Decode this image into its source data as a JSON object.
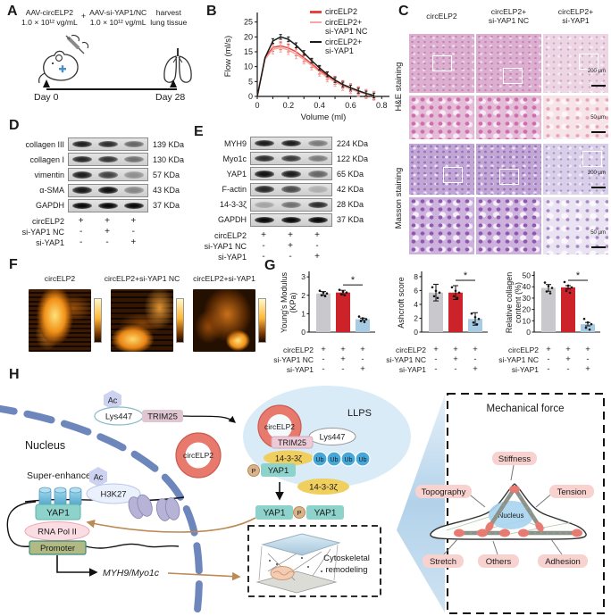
{
  "panelA": {
    "label": "A",
    "col1_line1": "AAV-circELP2",
    "col1_line2": "1.0 × 10¹² vg/mL",
    "plus": "+",
    "col2_line1": "AAV-si-YAP1/NC",
    "col2_line2": "1.0 × 10¹² vg/mL",
    "col3_line1": "harvest",
    "col3_line2": "lung tissue",
    "day0": "Day 0",
    "day28": "Day 28"
  },
  "panelB": {
    "label": "B",
    "chart_data": {
      "type": "line",
      "x": [
        0,
        0.05,
        0.1,
        0.15,
        0.2,
        0.25,
        0.3,
        0.35,
        0.4,
        0.45,
        0.5,
        0.55,
        0.6,
        0.65,
        0.7,
        0.75
      ],
      "series": [
        {
          "name": "circELP2",
          "color": "#e8423d",
          "values": [
            0,
            13,
            16.5,
            17,
            16.3,
            15,
            13,
            11,
            8.8,
            7,
            5.4,
            4,
            2.9,
            1.9,
            1,
            0.3
          ],
          "err": 1.3
        },
        {
          "name": "circELP2+ si-YAP1 NC",
          "color": "#f4a79e",
          "values": [
            0,
            12.5,
            15.8,
            16.4,
            15.6,
            14.2,
            12.4,
            10.4,
            8.3,
            6.4,
            4.9,
            3.5,
            2.5,
            1.5,
            0.8,
            0.2
          ],
          "err": 1.5
        },
        {
          "name": "circELP2+ si-YAP1",
          "color": "#1a1a1a",
          "values": [
            0,
            13,
            18.6,
            20,
            19.2,
            17.2,
            14.6,
            12,
            9.6,
            7.4,
            5.5,
            4,
            2.9,
            1.9,
            1,
            0.3
          ],
          "err": 0.8
        }
      ],
      "xlabel": "Volume (ml)",
      "ylabel": "Flow (ml/s)",
      "xticks": [
        0,
        0.2,
        0.4,
        0.6,
        0.8
      ],
      "minor_xticks": [
        0.1,
        0.3,
        0.5,
        0.7
      ],
      "yticks": [
        0,
        5,
        10,
        15,
        20,
        25
      ],
      "xlim": [
        0,
        0.85
      ],
      "ylim": [
        0,
        27
      ]
    },
    "legend": [
      {
        "color": "#e8423d",
        "lines": [
          "circELP2"
        ]
      },
      {
        "color": "#f4a79e",
        "lines": [
          "circELP2+",
          "si-YAP1 NC"
        ]
      },
      {
        "color": "#1a1a1a",
        "lines": [
          "circELP2+",
          "si-YAP1"
        ]
      }
    ]
  },
  "panelC": {
    "label": "C",
    "col_headers": [
      [
        "circELP2",
        ""
      ],
      [
        "circELP2+",
        "si-YAP1 NC"
      ],
      [
        "circELP2+",
        "si-YAP1"
      ]
    ],
    "row_groups": [
      "H&E staining",
      "Masson staining"
    ],
    "scale_bars": {
      "r1": "200 μm",
      "r2": "50 μm",
      "r3": "200 μm",
      "r4": "50 μm"
    }
  },
  "panelD": {
    "label": "D",
    "rows": [
      {
        "name": "collagen III",
        "kda": "139 KDa",
        "lanes": [
          0.88,
          0.82,
          0.55
        ]
      },
      {
        "name": "collagen I",
        "kda": "130 KDa",
        "lanes": [
          0.85,
          0.78,
          0.5
        ]
      },
      {
        "name": "vimentin",
        "kda": "57 KDa",
        "lanes": [
          0.9,
          0.72,
          0.35
        ]
      },
      {
        "name": "α-SMA",
        "kda": "43 KDa",
        "lanes": [
          0.92,
          0.96,
          0.4
        ]
      },
      {
        "name": "GAPDH",
        "kda": "37 KDa",
        "lanes": [
          1,
          1,
          1
        ]
      }
    ]
  },
  "panelE": {
    "label": "E",
    "rows": [
      {
        "name": "MYH9",
        "kda": "224 KDa",
        "lanes": [
          0.9,
          0.9,
          0.45
        ]
      },
      {
        "name": "Myo1c",
        "kda": "122 KDa",
        "lanes": [
          0.82,
          0.76,
          0.45
        ]
      },
      {
        "name": "YAP1",
        "kda": "65 KDa",
        "lanes": [
          0.95,
          0.9,
          0.55
        ]
      },
      {
        "name": "F-actin",
        "kda": "42 KDa",
        "lanes": [
          0.85,
          0.68,
          0.2
        ]
      },
      {
        "name": "14-3-3ζ",
        "kda": "28 KDa",
        "lanes": [
          0.25,
          0.5,
          0.82
        ]
      },
      {
        "name": "GAPDH",
        "kda": "37 KDa",
        "lanes": [
          1,
          1,
          1
        ]
      }
    ]
  },
  "conditions": {
    "rows": [
      {
        "label": "circELP2",
        "values": [
          "+",
          "+",
          "+"
        ]
      },
      {
        "label": "si-YAP1 NC",
        "values": [
          "-",
          "+",
          "-"
        ]
      },
      {
        "label": "si-YAP1",
        "values": [
          "-",
          "-",
          "+"
        ]
      }
    ]
  },
  "panelF": {
    "label": "F",
    "image_labels": [
      "circELP2",
      "circELP2+si-YAP1 NC",
      "circELP2+si-YAP1"
    ]
  },
  "panelG": {
    "label": "G",
    "bar_colors": [
      "#c9c9cd",
      "#cc2229",
      "#a6cbe3"
    ],
    "chart_data": [
      {
        "type": "bar",
        "ylabel_lines": [
          "Young's Modulus",
          "(KPa)"
        ],
        "yticks": [
          0,
          1,
          2,
          3
        ],
        "ymax": 3.2,
        "categories": [
          "circELP2",
          "circELP2+si-YAP1 NC",
          "circELP2+si-YAP1"
        ],
        "values": [
          2.1,
          2.15,
          0.7
        ],
        "errs": [
          0.1,
          0.12,
          0.06
        ],
        "sig": "*"
      },
      {
        "type": "bar",
        "ylabel_lines": [
          "Ashcroft score"
        ],
        "yticks": [
          0,
          2,
          4,
          6,
          8
        ],
        "ymax": 8.5,
        "categories": [
          "circELP2",
          "circELP2+si-YAP1 NC",
          "circELP2+si-YAP1"
        ],
        "values": [
          5.7,
          5.7,
          1.9
        ],
        "errs": [
          1.2,
          1.0,
          0.9
        ],
        "sig": "*"
      },
      {
        "type": "bar",
        "ylabel_lines": [
          "Relative collagen",
          "content (%)"
        ],
        "yticks": [
          0,
          10,
          20,
          30,
          40,
          50
        ],
        "ymax": 52,
        "categories": [
          "circELP2",
          "circELP2+si-YAP1 NC",
          "circELP2+si-YAP1"
        ],
        "values": [
          39,
          39.5,
          7
        ],
        "errs": [
          3,
          1.5,
          1.5
        ],
        "sig": "*"
      }
    ]
  },
  "panelH": {
    "label": "H",
    "nucleus": "Nucleus",
    "super_enhancer": "Super-enhancer",
    "ac": "Ac",
    "lys447": "Lys447",
    "trim25": "TRIM25",
    "circ": "circELP2",
    "llps": "LLPS",
    "ub": "Ub",
    "p": "P",
    "yap1": "YAP1",
    "t1433": "14-3-3ζ",
    "h3k27": "H3K27",
    "rna_pol": "RNA Pol II",
    "promoter": "Promoter",
    "target_genes": "MYH9/Myo1c",
    "cyto_line1": "Cytoskeletal",
    "cyto_line2": "remodeling",
    "mech_title": "Mechanical force",
    "mech_nucleus": "Nucleus",
    "stiffness": "Stiffness",
    "topography": "Topography",
    "tension": "Tension",
    "stretch": "Stretch",
    "others": "Others",
    "adhesion": "Adhesion"
  }
}
